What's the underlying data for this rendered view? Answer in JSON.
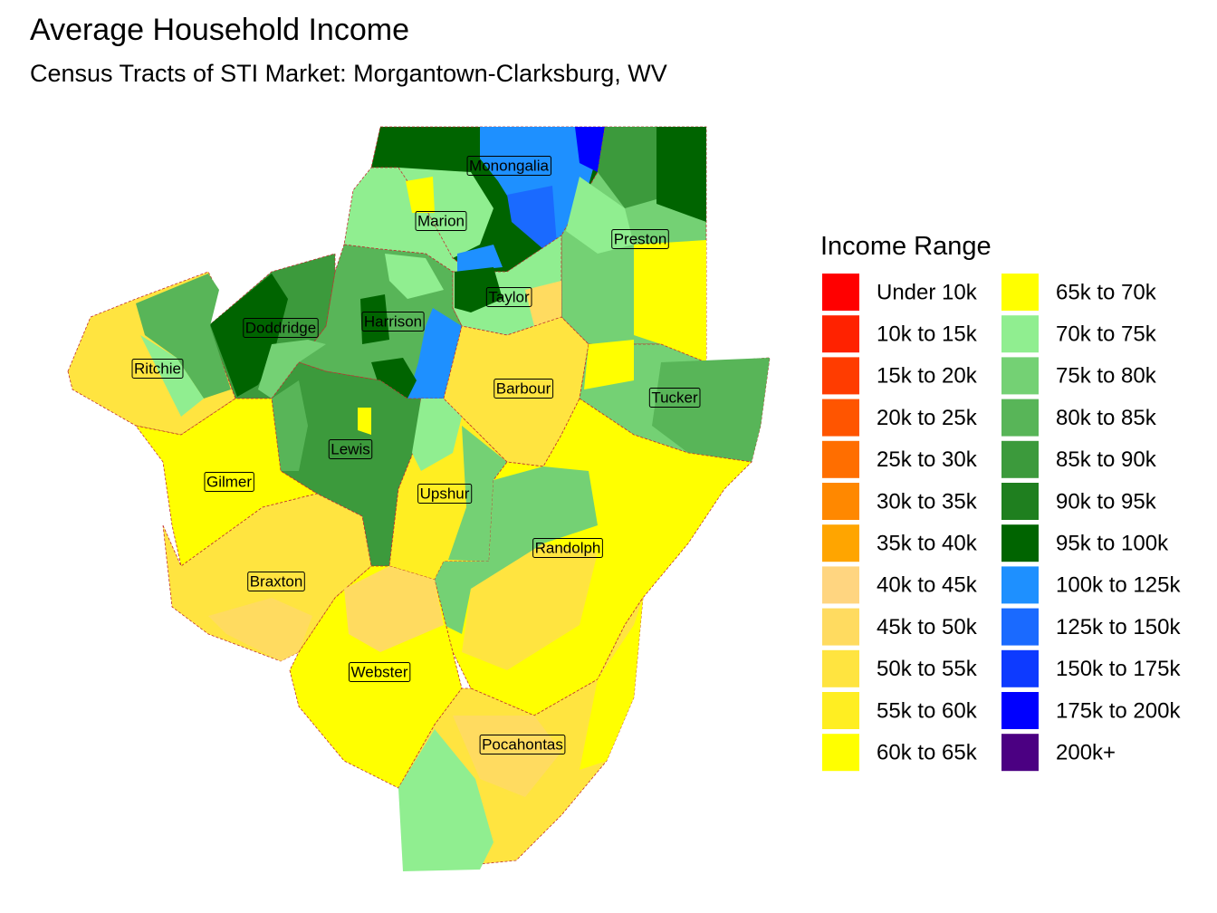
{
  "header": {
    "title": "Average Household Income",
    "subtitle": "Census Tracts of STI Market: Morgantown-Clarksburg, WV"
  },
  "legend": {
    "title": "Income Range",
    "items": [
      {
        "label": "Under 10k",
        "color": "#FF0000"
      },
      {
        "label": "10k to 15k",
        "color": "#FF2200"
      },
      {
        "label": "15k to 20k",
        "color": "#FF3C00"
      },
      {
        "label": "20k to 25k",
        "color": "#FF5500"
      },
      {
        "label": "25k to 30k",
        "color": "#FF6E00"
      },
      {
        "label": "30k to 35k",
        "color": "#FF8800"
      },
      {
        "label": "35k to 40k",
        "color": "#FFA500"
      },
      {
        "label": "40k to 45k",
        "color": "#FFD580"
      },
      {
        "label": "45k to 50k",
        "color": "#FFDB60"
      },
      {
        "label": "50k to 55k",
        "color": "#FFE440"
      },
      {
        "label": "55k to 60k",
        "color": "#FFEE22"
      },
      {
        "label": "60k to 65k",
        "color": "#FFFF00"
      },
      {
        "label": "65k to 70k",
        "color": "#FFFF00"
      },
      {
        "label": "70k to 75k",
        "color": "#90EE90"
      },
      {
        "label": "75k to 80k",
        "color": "#74D174"
      },
      {
        "label": "80k to 85k",
        "color": "#58B558"
      },
      {
        "label": "85k to 90k",
        "color": "#3C9A3C"
      },
      {
        "label": "90k to 95k",
        "color": "#1F7F1F"
      },
      {
        "label": "95k to 100k",
        "color": "#006400"
      },
      {
        "label": "100k to 125k",
        "color": "#1E90FF"
      },
      {
        "label": "125k to 150k",
        "color": "#1A6AFF"
      },
      {
        "label": "150k to 175k",
        "color": "#0D3AFF"
      },
      {
        "label": "175k to 200k",
        "color": "#0000FF"
      },
      {
        "label": "200k+",
        "color": "#4B0082"
      }
    ]
  },
  "map": {
    "labels": [
      "Monongalia",
      "Marion",
      "Preston",
      "Taylor",
      "Harrison",
      "Doddridge",
      "Ritchie",
      "Barbour",
      "Tucker",
      "Lewis",
      "Gilmer",
      "Upshur",
      "Randolph",
      "Braxton",
      "Webster",
      "Pocahontas"
    ]
  }
}
